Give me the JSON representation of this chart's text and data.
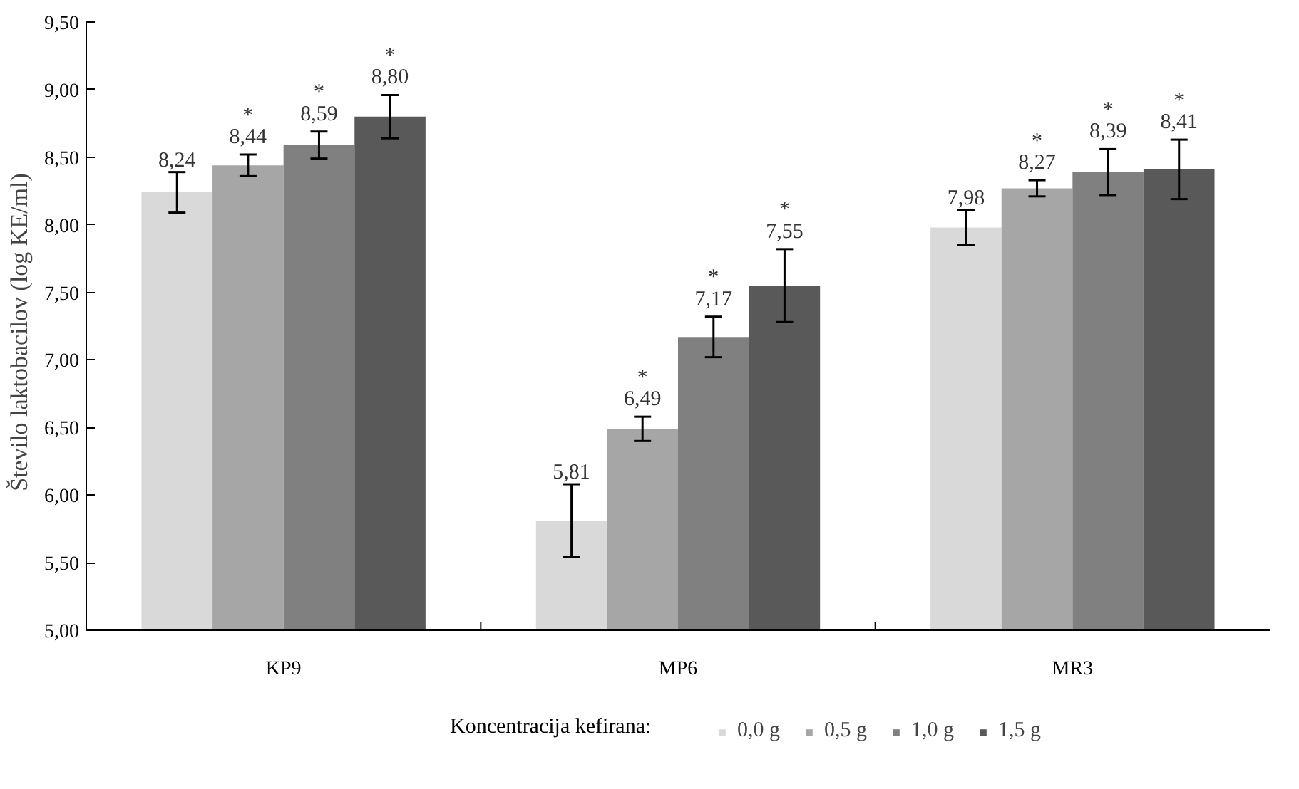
{
  "chart_data": {
    "type": "bar",
    "categories": [
      "KP9",
      "MP6",
      "MR3"
    ],
    "ylabel": "Število  laktobacilov  (log KE/ml)",
    "legend_title": "Koncentracija kefirana:",
    "series": [
      {
        "name": "0,0 g",
        "color": "#d9d9d9",
        "values": [
          8.24,
          5.81,
          7.98
        ],
        "errors": [
          0.15,
          0.27,
          0.13
        ],
        "value_labels": [
          "8,24",
          "5,81",
          "7,98"
        ]
      },
      {
        "name": "0,5 g",
        "color": "#a6a6a6",
        "values": [
          8.44,
          6.49,
          8.27
        ],
        "errors": [
          0.08,
          0.09,
          0.06
        ],
        "value_labels": [
          "*\n8,44",
          "*\n6,49",
          "*\n8,27"
        ]
      },
      {
        "name": "1,0 g",
        "color": "#808080",
        "values": [
          8.59,
          7.17,
          8.39
        ],
        "errors": [
          0.1,
          0.15,
          0.17
        ],
        "value_labels": [
          "*\n8,59",
          "*\n7,17",
          "*\n8,39"
        ]
      },
      {
        "name": "1,5 g",
        "color": "#595959",
        "values": [
          8.8,
          7.55,
          8.41
        ],
        "errors": [
          0.16,
          0.27,
          0.22
        ],
        "value_labels": [
          "*\n8,80",
          "*\n7,55",
          "*\n8,41"
        ]
      }
    ],
    "ylim": [
      5.0,
      9.5
    ],
    "yticks": [
      {
        "value": 5.0,
        "label": "5,00"
      },
      {
        "value": 5.5,
        "label": "5,50"
      },
      {
        "value": 6.0,
        "label": "6,00"
      },
      {
        "value": 6.5,
        "label": "6,50"
      },
      {
        "value": 7.0,
        "label": "7,00"
      },
      {
        "value": 7.5,
        "label": "7,50"
      },
      {
        "value": 8.0,
        "label": "8,00"
      },
      {
        "value": 8.5,
        "label": "8,50"
      },
      {
        "value": 9.0,
        "label": "9,00"
      },
      {
        "value": 9.5,
        "label": "9,50"
      }
    ],
    "grid": false,
    "legend": "bottom"
  }
}
